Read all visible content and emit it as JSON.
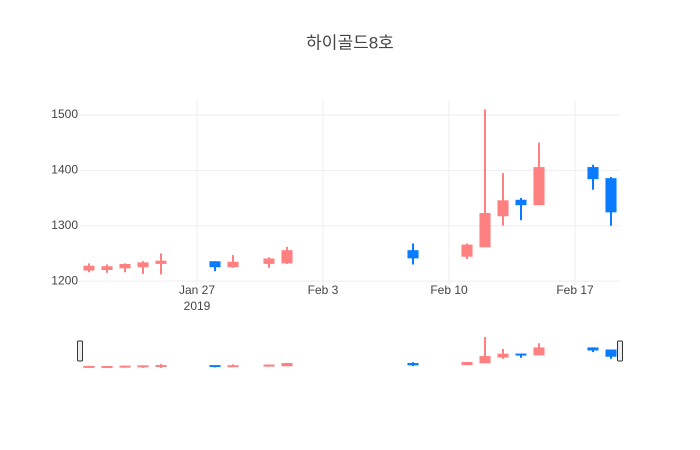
{
  "chart_data": {
    "type": "candlestick",
    "title": "하이골드8호",
    "x": [
      "2019-01-21",
      "2019-01-22",
      "2019-01-23",
      "2019-01-24",
      "2019-01-25",
      "2019-01-28",
      "2019-01-29",
      "2019-01-31",
      "2019-02-01",
      "2019-02-08",
      "2019-02-11",
      "2019-02-12",
      "2019-02-13",
      "2019-02-14",
      "2019-02-15",
      "2019-02-18",
      "2019-02-19"
    ],
    "open": [
      1220,
      1221,
      1224,
      1226,
      1232,
      1235,
      1226,
      1232,
      1233,
      1255,
      1245,
      1262,
      1318,
      1346,
      1338,
      1405,
      1385
    ],
    "high": [
      1232,
      1230,
      1232,
      1236,
      1250,
      1236,
      1247,
      1243,
      1262,
      1268,
      1268,
      1510,
      1395,
      1350,
      1450,
      1410,
      1388
    ],
    "low": [
      1216,
      1215,
      1216,
      1213,
      1212,
      1218,
      1224,
      1224,
      1231,
      1230,
      1240,
      1262,
      1300,
      1310,
      1338,
      1365,
      1300
    ],
    "close": [
      1227,
      1226,
      1230,
      1233,
      1236,
      1226,
      1234,
      1240,
      1255,
      1242,
      1265,
      1322,
      1345,
      1338,
      1405,
      1385,
      1325
    ],
    "increasing_color": "#ff8080",
    "decreasing_color": "#0a7bff",
    "xlim": [
      "2019-01-20T12:00",
      "2019-02-19T12:00"
    ],
    "xticks": [
      {
        "value": "2019-01-27",
        "label": "Jan 27"
      },
      {
        "value": "2019-02-03",
        "label": "Feb 3"
      },
      {
        "value": "2019-02-10",
        "label": "Feb 10"
      },
      {
        "value": "2019-02-17",
        "label": "Feb 17"
      }
    ],
    "x_year": "2019",
    "ylim": [
      1193,
      1527
    ],
    "yticks": [
      1200,
      1300,
      1400,
      1500
    ],
    "grid": true,
    "rangeslider": true
  }
}
